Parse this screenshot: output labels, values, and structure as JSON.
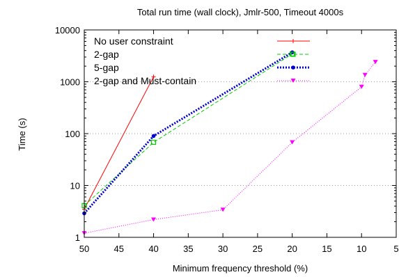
{
  "chart_data": {
    "type": "line",
    "title": "Total run time (wall clock), Jmlr-500, Timeout 4000s",
    "xlabel": "Minimum frequency threshold (%)",
    "ylabel": "Time (s)",
    "x_reversed": true,
    "xlim": [
      5,
      50
    ],
    "ylim": [
      1,
      10000
    ],
    "y_scale": "log",
    "x_ticks": [
      "50",
      "45",
      "40",
      "35",
      "30",
      "25",
      "20",
      "15",
      "10",
      "5"
    ],
    "y_ticks": [
      "1",
      "10",
      "100",
      "1000",
      "10000"
    ],
    "grid": "horizontal dotted",
    "legend_position": "top-left",
    "series": [
      {
        "name": "No user constraint",
        "color": "#ff0000",
        "dash": "solid",
        "marker": "plus",
        "x": [
          50,
          40
        ],
        "y": [
          3.5,
          1250
        ]
      },
      {
        "name": "2-gap",
        "color": "#00cc00",
        "dash": "dashed",
        "marker": "square",
        "x": [
          50,
          40,
          20
        ],
        "y": [
          4.1,
          68,
          3450
        ]
      },
      {
        "name": "5-gap",
        "color": "#0000cc",
        "dash": "dotted-thick",
        "marker": "circle",
        "x": [
          50,
          40,
          20
        ],
        "y": [
          2.9,
          90,
          3700
        ]
      },
      {
        "name": "2-gap and Must-contain",
        "color": "#ff00ff",
        "dash": "dotted",
        "marker": "triangle-down",
        "x": [
          50,
          40,
          30,
          20,
          10,
          9.5,
          8
        ],
        "y": [
          1.2,
          2.2,
          3.4,
          68,
          800,
          1350,
          2400
        ]
      }
    ]
  }
}
